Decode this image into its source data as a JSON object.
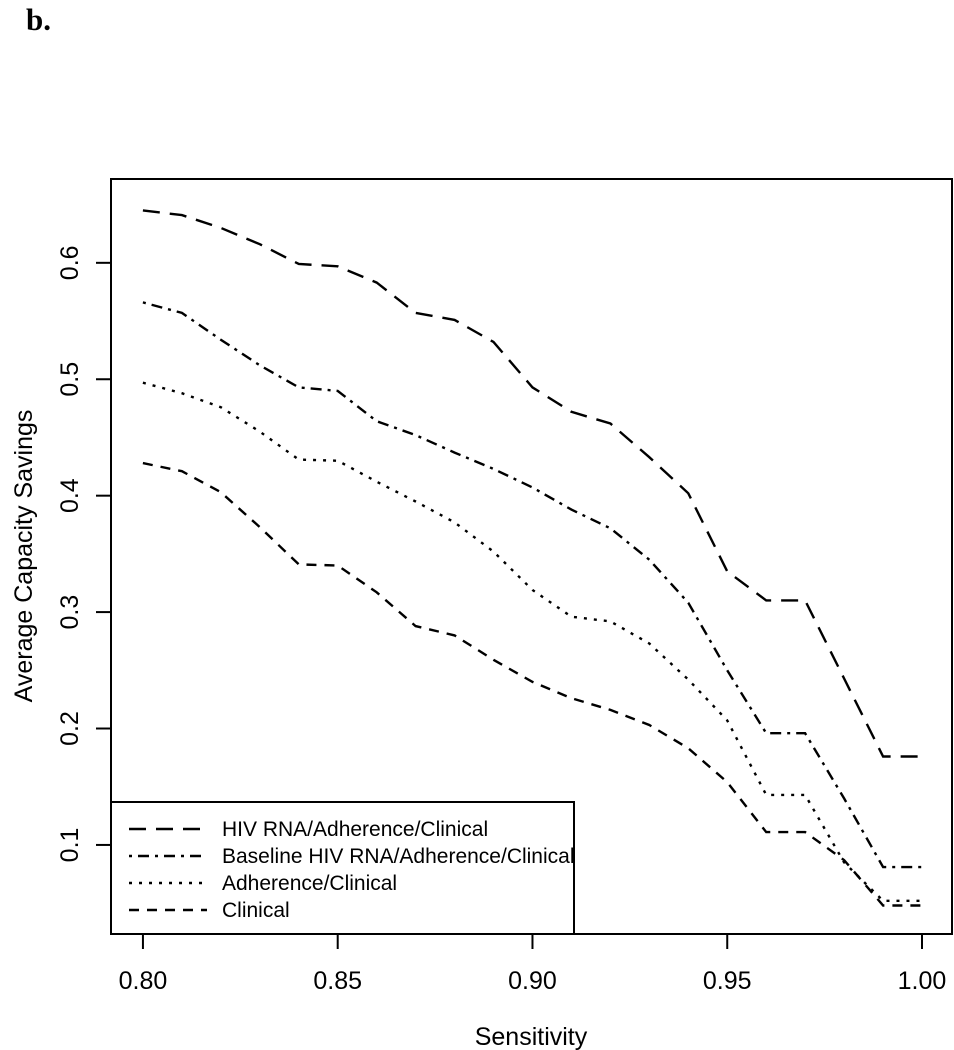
{
  "panel_label": "b.",
  "chart_data": {
    "type": "line",
    "title": "",
    "xlabel": "Sensitivity",
    "ylabel": "Average Capacity Savings",
    "xlim": [
      0.7918,
      1.0077
    ],
    "ylim": [
      0.0235,
      0.672
    ],
    "grid": false,
    "legend_position": "bottom-left",
    "line_color": "#000000",
    "x_ticks": [
      "0.80",
      "0.85",
      "0.90",
      "0.95",
      "1.00"
    ],
    "x_tick_values": [
      0.8,
      0.85,
      0.9,
      0.95,
      1.0
    ],
    "y_ticks": [
      "0.1",
      "0.2",
      "0.3",
      "0.4",
      "0.5",
      "0.6"
    ],
    "y_tick_values": [
      0.1,
      0.2,
      0.3,
      0.4,
      0.5,
      0.6
    ],
    "x": [
      0.8,
      0.81,
      0.82,
      0.83,
      0.84,
      0.85,
      0.86,
      0.87,
      0.88,
      0.89,
      0.9,
      0.91,
      0.92,
      0.93,
      0.94,
      0.95,
      0.96,
      0.97,
      0.98,
      0.99,
      1.0
    ],
    "series": [
      {
        "name": "HIV RNA/Adherence/Clinical",
        "linestyle": "longdash",
        "values": [
          0.645,
          0.641,
          0.63,
          0.616,
          0.599,
          0.597,
          0.583,
          0.557,
          0.551,
          0.532,
          0.493,
          0.472,
          0.462,
          0.433,
          0.402,
          0.335,
          0.31,
          0.31,
          0.243,
          0.176,
          0.176
        ]
      },
      {
        "name": "Baseline HIV RNA/Adherence/Clinical",
        "linestyle": "dashdot",
        "values": [
          0.566,
          0.557,
          0.534,
          0.512,
          0.493,
          0.49,
          0.464,
          0.452,
          0.437,
          0.423,
          0.407,
          0.388,
          0.372,
          0.345,
          0.308,
          0.25,
          0.196,
          0.196,
          0.14,
          0.081,
          0.081
        ]
      },
      {
        "name": "Adherence/Clinical",
        "linestyle": "dotted",
        "values": [
          0.497,
          0.488,
          0.476,
          0.455,
          0.431,
          0.43,
          0.412,
          0.395,
          0.377,
          0.352,
          0.319,
          0.296,
          0.292,
          0.273,
          0.242,
          0.207,
          0.143,
          0.143,
          0.085,
          0.052,
          0.052
        ]
      },
      {
        "name": "Clinical",
        "linestyle": "dashed",
        "values": [
          0.428,
          0.421,
          0.403,
          0.373,
          0.341,
          0.34,
          0.317,
          0.288,
          0.28,
          0.259,
          0.24,
          0.226,
          0.216,
          0.203,
          0.183,
          0.154,
          0.111,
          0.111,
          0.087,
          0.048,
          0.048
        ]
      }
    ]
  }
}
